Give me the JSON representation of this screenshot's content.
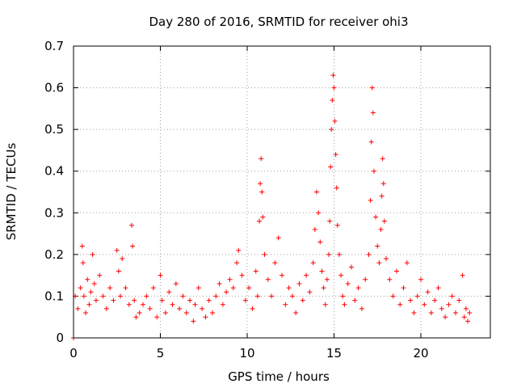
{
  "colors": {
    "series": "#ff0000",
    "axis": "#000000",
    "grid": "#a0a0a0"
  },
  "chart_data": {
    "type": "scatter",
    "title": "Day 280 of 2016, SRMTID for receiver ohi3",
    "xlabel": "GPS time / hours",
    "ylabel": "SRMTID / TECUs",
    "xlim": [
      0,
      24
    ],
    "ylim": [
      0,
      0.7
    ],
    "xticks": [
      0,
      5,
      10,
      15,
      20
    ],
    "xtick_labels": [
      "0",
      "5",
      "10",
      "15",
      "20"
    ],
    "yticks": [
      0,
      0.1,
      0.2,
      0.3,
      0.4,
      0.5,
      0.6,
      0.7
    ],
    "ytick_labels": [
      "0",
      "0.1",
      "0.2",
      "0.3",
      "0.4",
      "0.5",
      "0.6",
      "0.7"
    ],
    "grid": true,
    "marker": "+",
    "series": [
      {
        "name": "SRMTID",
        "x": [
          0.0,
          0.1,
          0.25,
          0.4,
          0.5,
          0.55,
          0.6,
          0.7,
          0.8,
          0.9,
          1.0,
          1.1,
          1.2,
          1.3,
          1.5,
          1.7,
          1.9,
          2.1,
          2.3,
          2.5,
          2.6,
          2.7,
          2.8,
          3.0,
          3.2,
          3.35,
          3.4,
          3.5,
          3.6,
          3.8,
          4.0,
          4.2,
          4.4,
          4.6,
          4.8,
          5.0,
          5.1,
          5.3,
          5.5,
          5.7,
          5.9,
          6.1,
          6.3,
          6.5,
          6.7,
          6.9,
          7.0,
          7.2,
          7.4,
          7.6,
          7.8,
          8.0,
          8.2,
          8.4,
          8.6,
          8.8,
          9.0,
          9.2,
          9.4,
          9.5,
          9.7,
          9.9,
          10.1,
          10.3,
          10.5,
          10.6,
          10.7,
          10.75,
          10.8,
          10.85,
          10.9,
          11.0,
          11.2,
          11.4,
          11.6,
          11.8,
          12.0,
          12.2,
          12.4,
          12.6,
          12.8,
          13.0,
          13.2,
          13.4,
          13.6,
          13.8,
          13.9,
          14.0,
          14.1,
          14.2,
          14.3,
          14.4,
          14.5,
          14.6,
          14.7,
          14.75,
          14.8,
          14.85,
          14.9,
          14.95,
          15.0,
          15.05,
          15.1,
          15.15,
          15.2,
          15.3,
          15.4,
          15.5,
          15.6,
          15.8,
          16.0,
          16.2,
          16.4,
          16.6,
          16.8,
          17.0,
          17.1,
          17.15,
          17.2,
          17.25,
          17.3,
          17.4,
          17.5,
          17.6,
          17.7,
          17.75,
          17.8,
          17.85,
          17.9,
          18.0,
          18.2,
          18.4,
          18.6,
          18.8,
          19.0,
          19.2,
          19.4,
          19.6,
          19.8,
          20.0,
          20.2,
          20.4,
          20.6,
          20.8,
          21.0,
          21.2,
          21.4,
          21.6,
          21.8,
          22.0,
          22.2,
          22.4,
          22.5,
          22.6,
          22.7,
          22.8
        ],
        "y": [
          0.0,
          0.1,
          0.07,
          0.12,
          0.22,
          0.18,
          0.1,
          0.06,
          0.14,
          0.08,
          0.11,
          0.2,
          0.13,
          0.09,
          0.15,
          0.1,
          0.07,
          0.12,
          0.09,
          0.21,
          0.16,
          0.1,
          0.19,
          0.12,
          0.08,
          0.27,
          0.22,
          0.09,
          0.05,
          0.06,
          0.08,
          0.1,
          0.07,
          0.12,
          0.05,
          0.15,
          0.09,
          0.06,
          0.11,
          0.08,
          0.13,
          0.07,
          0.1,
          0.06,
          0.09,
          0.04,
          0.08,
          0.12,
          0.07,
          0.05,
          0.09,
          0.06,
          0.1,
          0.13,
          0.08,
          0.11,
          0.14,
          0.12,
          0.18,
          0.21,
          0.15,
          0.09,
          0.12,
          0.07,
          0.16,
          0.1,
          0.28,
          0.37,
          0.43,
          0.35,
          0.29,
          0.2,
          0.14,
          0.1,
          0.18,
          0.24,
          0.15,
          0.08,
          0.12,
          0.1,
          0.06,
          0.13,
          0.09,
          0.15,
          0.11,
          0.18,
          0.26,
          0.35,
          0.3,
          0.23,
          0.16,
          0.12,
          0.08,
          0.14,
          0.2,
          0.28,
          0.41,
          0.5,
          0.57,
          0.63,
          0.6,
          0.52,
          0.44,
          0.36,
          0.27,
          0.2,
          0.15,
          0.1,
          0.08,
          0.13,
          0.17,
          0.09,
          0.12,
          0.07,
          0.14,
          0.2,
          0.33,
          0.47,
          0.6,
          0.54,
          0.4,
          0.29,
          0.22,
          0.18,
          0.26,
          0.34,
          0.43,
          0.37,
          0.28,
          0.19,
          0.14,
          0.1,
          0.16,
          0.08,
          0.12,
          0.18,
          0.09,
          0.06,
          0.1,
          0.14,
          0.08,
          0.11,
          0.06,
          0.09,
          0.12,
          0.07,
          0.05,
          0.08,
          0.1,
          0.06,
          0.09,
          0.15,
          0.05,
          0.07,
          0.04,
          0.06
        ]
      }
    ]
  }
}
